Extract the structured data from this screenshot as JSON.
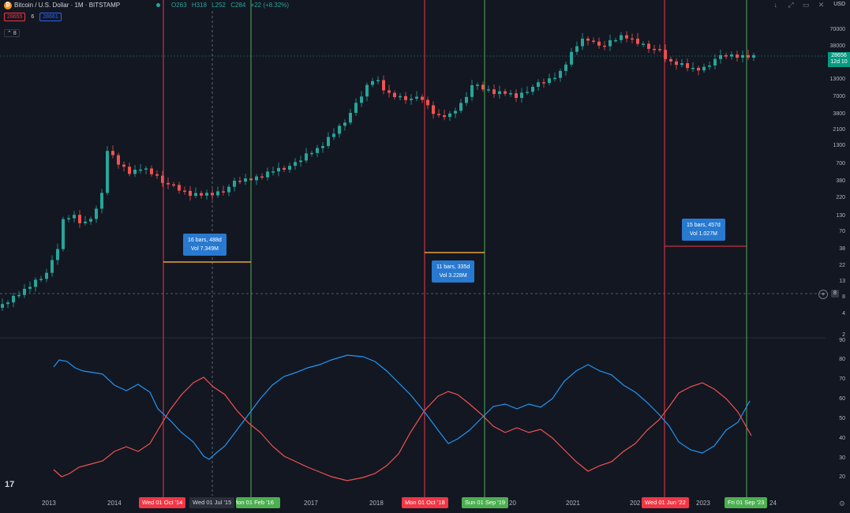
{
  "header": {
    "logo_glyph": "₿",
    "symbol_label": "Bitcoin / U.S. Dollar · 1M · BITSTAMP",
    "ohlc": {
      "o": "O263",
      "h": "H318",
      "l": "L252",
      "c": "C284"
    },
    "change": "+22 (+8.32%)",
    "icons": [
      "arrow-down-icon",
      "expand-icon",
      "maximize-icon",
      "close-icon"
    ],
    "currency": "USD"
  },
  "bidask": {
    "bid": "28655",
    "spread": "6",
    "ask": "28661"
  },
  "collapse_label": "8",
  "price_axis": {
    "labels": [
      "70000",
      "38000",
      "13000",
      "7000",
      "3800",
      "2100",
      "1300",
      "700",
      "380",
      "220",
      "130",
      "70",
      "38",
      "22",
      "13",
      "8",
      "4",
      "2"
    ],
    "last_price": "28656",
    "last_countdown": "12d 10",
    "crosshair_label": "8"
  },
  "oscillator_axis": {
    "labels": [
      "90",
      "80",
      "70",
      "60",
      "50",
      "40",
      "30",
      "20"
    ]
  },
  "time_axis": {
    "year_labels": [
      "2013",
      "2014",
      "2017",
      "2018",
      "2021",
      "2023"
    ],
    "clipped_labels": [
      "20",
      "202",
      "24"
    ],
    "badges": [
      {
        "text": "Wed 01 Oct '14",
        "kind": "red"
      },
      {
        "text": "Wed 01 Jul '15",
        "kind": "dark"
      },
      {
        "text": "Mon 01 Feb '16",
        "kind": "green"
      },
      {
        "text": "Mon 01 Oct '18",
        "kind": "red"
      },
      {
        "text": "Sun 01 Sep '19",
        "kind": "green"
      },
      {
        "text": "Wed 01 Jun '22",
        "kind": "red"
      },
      {
        "text": "Fri 01 Sep '23",
        "kind": "green"
      }
    ]
  },
  "measure_tooltips": [
    {
      "line1": "16 bars, 488d",
      "line2": "Vol 7.349M"
    },
    {
      "line1": "11 bars, 335d",
      "line2": "Vol 3.228M"
    },
    {
      "line1": "15 bars, 457d",
      "line2": "Vol 1.027M"
    }
  ],
  "brand_label": "17",
  "colors": {
    "bg": "#131722",
    "up": "#26a69a",
    "down": "#ef5350",
    "red_line": "#f23645",
    "green_line": "#4caf50",
    "blue_series": "#2196f3",
    "red_series": "#ef5350"
  }
}
